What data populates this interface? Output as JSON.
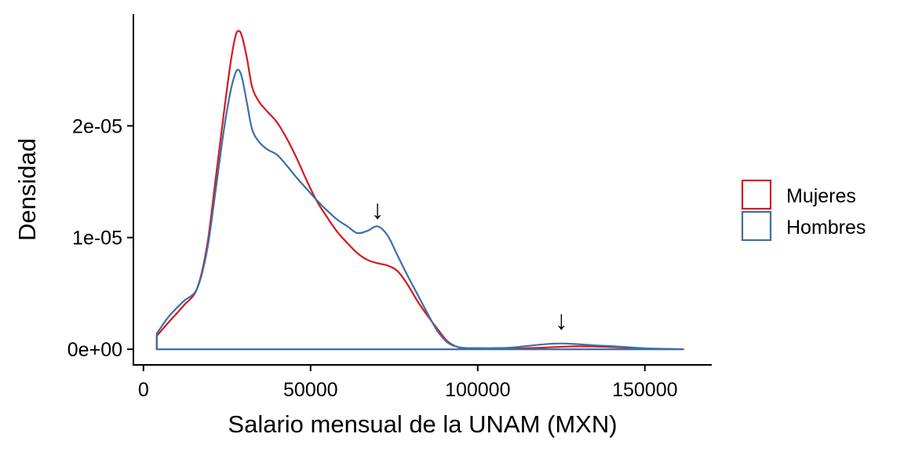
{
  "chart_data": {
    "type": "area",
    "title": "",
    "xlabel": "Salario mensual de la UNAM (MXN)",
    "ylabel": "Densidad",
    "xlim": [
      -3000,
      170000
    ],
    "ylim": [
      -1.4e-06,
      3e-05
    ],
    "x_ticks": [
      0,
      50000,
      100000,
      150000
    ],
    "x_tick_labels": [
      "0",
      "50000",
      "100000",
      "150000"
    ],
    "y_ticks": [
      0,
      1e-05,
      2e-05
    ],
    "y_tick_labels": [
      "0e+00",
      "1e-05",
      "2e-05"
    ],
    "grid": false,
    "legend_position": "right",
    "series": [
      {
        "name": "Mujeres",
        "color": "#d7191c",
        "x": [
          4000,
          7500,
          12000,
          16000,
          19000,
          21500,
          24000,
          26000,
          27500,
          28500,
          29500,
          31000,
          32500,
          34500,
          37000,
          40000,
          43000,
          46000,
          49000,
          52000,
          55000,
          58000,
          61000,
          64000,
          67000,
          70000,
          73000,
          76000,
          79000,
          82000,
          85000,
          88000,
          91000,
          94000,
          97000,
          100000,
          105000,
          110000,
          115000,
          120000,
          125000,
          130000,
          135000,
          140000,
          145000,
          150000,
          155000,
          161500
        ],
        "y": [
          1.2e-06,
          2.4e-06,
          3.9e-06,
          5.4e-06,
          9.2e-06,
          1.5e-05,
          2.1e-05,
          2.55e-05,
          2.8e-05,
          2.85e-05,
          2.8e-05,
          2.6e-05,
          2.35e-05,
          2.22e-05,
          2.13e-05,
          2.03e-05,
          1.88e-05,
          1.7e-05,
          1.5e-05,
          1.32e-05,
          1.18e-05,
          1.05e-05,
          9.5e-06,
          8.6e-06,
          8e-06,
          7.7e-06,
          7.5e-06,
          7e-06,
          5.8e-06,
          4.3e-06,
          3e-06,
          1.8e-06,
          7e-07,
          2e-07,
          1e-07,
          1e-07,
          5e-08,
          5e-08,
          1e-07,
          1.5e-07,
          2.2e-07,
          2.6e-07,
          2.4e-07,
          2e-07,
          1.3e-07,
          6e-08,
          3e-08,
          0
        ]
      },
      {
        "name": "Hombres",
        "color": "#3a6fab",
        "x": [
          4000,
          7500,
          12000,
          16000,
          19000,
          21500,
          24000,
          26000,
          27500,
          28500,
          29500,
          31000,
          32500,
          34500,
          37000,
          40000,
          43000,
          46000,
          49000,
          52000,
          55000,
          58000,
          61000,
          64000,
          67000,
          70000,
          73000,
          76000,
          79000,
          82000,
          85000,
          88000,
          91000,
          94000,
          97000,
          100000,
          105000,
          110000,
          115000,
          120000,
          125000,
          130000,
          135000,
          140000,
          145000,
          150000,
          155000,
          161500
        ],
        "y": [
          1.4e-06,
          2.9e-06,
          4.3e-06,
          5.4e-06,
          8.8e-06,
          1.4e-05,
          1.95e-05,
          2.3e-05,
          2.47e-05,
          2.5e-05,
          2.43e-05,
          2.2e-05,
          1.97e-05,
          1.86e-05,
          1.79e-05,
          1.74e-05,
          1.64e-05,
          1.53e-05,
          1.43e-05,
          1.33e-05,
          1.24e-05,
          1.16e-05,
          1.1e-05,
          1.04e-05,
          1.06e-05,
          1.1e-05,
          1.02e-05,
          8.4e-06,
          6.6e-06,
          4.9e-06,
          3.2e-06,
          1.6e-06,
          6e-07,
          2e-07,
          1e-07,
          1e-07,
          1e-07,
          1.5e-07,
          3e-07,
          4.5e-07,
          5.2e-07,
          4.5e-07,
          3.5e-07,
          2.8e-07,
          1.8e-07,
          9e-08,
          4e-08,
          0
        ]
      }
    ],
    "annotations": [
      {
        "text": "↓",
        "x": 70000,
        "y": 1.17e-05
      },
      {
        "text": "↓",
        "x": 125000,
        "y": 1.8e-06
      }
    ]
  }
}
